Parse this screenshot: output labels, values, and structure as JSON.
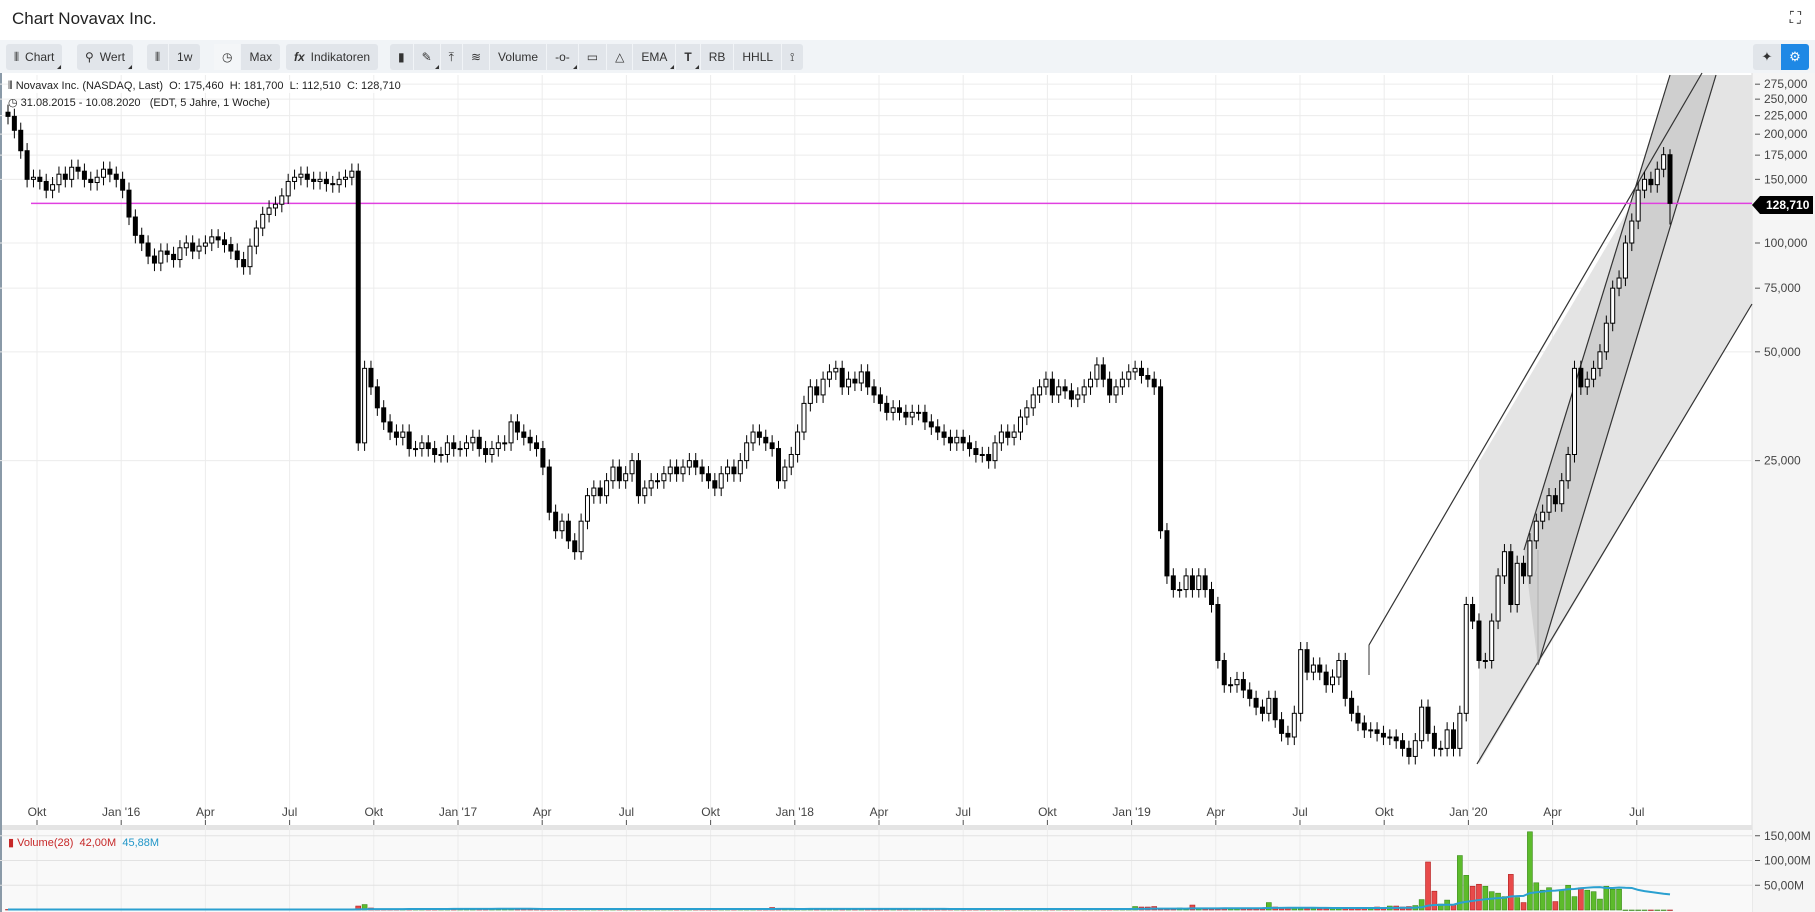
{
  "window": {
    "title": "Chart Novavax Inc.",
    "fullscreen_icon": "expand-icon"
  },
  "toolbar": {
    "chart": "Chart",
    "wert": "Wert",
    "interval": "1w",
    "range": "Max",
    "indicators": "Indikatoren",
    "volume": "Volume",
    "ema": "EMA",
    "rb": "RB",
    "hhll": "HHLL",
    "icons": [
      "candlestick-icon",
      "search-icon",
      "candlestick-icon",
      "clock-icon",
      "fx-icon",
      "bookmark-icon",
      "brush-icon",
      "upload-line-icon",
      "fibonacci-icon",
      "line-point-icon",
      "rectangle-icon",
      "triangle-icon",
      "text-icon",
      "path-icon",
      "sparkle-icon",
      "settings-icon"
    ]
  },
  "legend": {
    "instrument": "Novavax Inc. (NASDAQ, Last)",
    "o": "O: 175,460",
    "h": "H: 181,700",
    "l": "L: 112,510",
    "c": "C: 128,710",
    "range": "31.08.2015 - 10.08.2020",
    "info": "(EDT, 5 Jahre, 1 Woche)"
  },
  "volume_legend": {
    "label": "Volume(28)",
    "value": "42,00M",
    "ma_value": "45,88M"
  },
  "colors": {
    "hline": "#e040e0",
    "up_volume": "#5dbb2c",
    "down_volume": "#e84a4a",
    "volume_ma": "#2aa0d0",
    "accent": "#1e88e5"
  },
  "chart_data": {
    "type": "candlestick",
    "scale": "log",
    "interval": "1 Woche",
    "last_price": "128,710",
    "horizontal_line": 128.71,
    "y_ticks": [
      {
        "v": 275,
        "l": "275,000"
      },
      {
        "v": 250,
        "l": "250,000"
      },
      {
        "v": 225,
        "l": "225,000"
      },
      {
        "v": 200,
        "l": "200,000"
      },
      {
        "v": 175,
        "l": "175,000"
      },
      {
        "v": 150,
        "l": "150,000"
      },
      {
        "v": 100,
        "l": "100,000"
      },
      {
        "v": 75,
        "l": "75,000"
      },
      {
        "v": 50,
        "l": "50,000"
      },
      {
        "v": 25,
        "l": "25,000"
      }
    ],
    "x_ticks": [
      "Okt",
      "Jan '16",
      "Apr",
      "Jul",
      "Okt",
      "Jan '17",
      "Apr",
      "Jul",
      "Okt",
      "Jan '18",
      "Apr",
      "Jul",
      "Okt",
      "Jan '19",
      "Apr",
      "Jul",
      "Okt",
      "Jan '20",
      "Apr",
      "Jul"
    ],
    "volume_ticks": [
      {
        "v": 150,
        "l": "150,00M"
      },
      {
        "v": 100,
        "l": "100,00M"
      },
      {
        "v": 50,
        "l": "50,00M"
      }
    ],
    "first_open": 230,
    "closes": [
      224,
      205,
      180,
      150,
      152,
      148,
      140,
      145,
      155,
      150,
      162,
      158,
      150,
      147,
      152,
      160,
      155,
      150,
      140,
      118,
      105,
      100,
      92,
      88,
      95,
      93,
      90,
      97,
      100,
      95,
      98,
      100,
      104,
      102,
      99,
      95,
      90,
      86,
      98,
      110,
      120,
      125,
      128,
      135,
      148,
      152,
      155,
      150,
      148,
      150,
      146,
      145,
      150,
      152,
      158,
      28,
      45,
      40,
      35,
      32,
      30,
      29,
      30,
      27,
      27,
      28,
      27,
      26,
      26,
      28,
      27,
      27,
      28,
      29,
      27,
      26,
      27,
      28,
      28,
      32,
      30,
      29,
      28,
      27,
      24,
      18,
      16,
      17,
      15,
      14,
      17,
      20,
      21,
      20,
      22,
      24,
      22,
      23,
      25,
      20,
      21,
      22,
      22,
      23,
      24,
      23,
      24,
      25,
      24,
      23,
      22,
      21,
      23,
      24,
      23,
      25,
      28,
      30,
      29,
      28,
      27,
      22,
      24,
      26,
      30,
      36,
      40,
      38,
      42,
      44,
      45,
      40,
      42,
      41,
      44,
      40,
      38,
      36,
      34,
      35,
      34,
      33,
      34,
      34,
      32,
      31,
      30,
      29,
      28,
      29,
      28,
      27,
      26,
      26,
      25,
      28,
      30,
      29,
      30,
      33,
      35,
      38,
      40,
      42,
      38,
      40,
      39,
      37,
      38,
      40,
      42,
      46,
      42,
      38,
      40,
      42,
      44,
      45,
      43,
      42,
      40,
      16,
      12,
      11,
      11,
      12,
      11,
      12,
      11,
      10,
      7,
      6,
      6,
      6.2,
      5.8,
      5.5,
      5.2,
      5,
      5.5,
      4.8,
      4.4,
      4.3,
      5,
      7.5,
      6.5,
      6.8,
      6.5,
      6,
      6.3,
      7,
      5.5,
      5,
      4.7,
      4.5,
      4.5,
      4.4,
      4.3,
      4.3,
      4.2,
      4,
      3.8,
      4.2,
      5.2,
      4.4,
      4,
      4,
      4.5,
      4,
      5,
      10,
      9,
      7,
      7,
      9,
      12,
      14,
      10,
      13,
      12,
      15,
      17,
      18,
      20,
      19,
      22,
      26,
      45,
      40,
      42,
      45,
      50,
      60,
      75,
      80,
      100,
      115,
      140,
      150,
      145,
      160,
      175.46,
      128.71
    ],
    "volumes": [
      1,
      1,
      1,
      1,
      1,
      1,
      1,
      1,
      1,
      1,
      1,
      1,
      1,
      1,
      1,
      1,
      1,
      1,
      1,
      1,
      1,
      1,
      1,
      1,
      1,
      1,
      1,
      1,
      1,
      1,
      1,
      1,
      1,
      1,
      1,
      1,
      1,
      1,
      1,
      1,
      1,
      1,
      1,
      1,
      1,
      1,
      1,
      1,
      1,
      1,
      1,
      1,
      1,
      1,
      1,
      8,
      11,
      4,
      2,
      2,
      2,
      2,
      2,
      2,
      2,
      2,
      2,
      2,
      2,
      2,
      2,
      2,
      2,
      2,
      2,
      2,
      2,
      2,
      2,
      2,
      2,
      2,
      2,
      2,
      2,
      2,
      2,
      2,
      2,
      2,
      2,
      2,
      2,
      2,
      2,
      2,
      3,
      2,
      2,
      2,
      2,
      2,
      2,
      2,
      2,
      2,
      2,
      2,
      2,
      2,
      2,
      2,
      2,
      2,
      2,
      2,
      2,
      2,
      2,
      2,
      5,
      3,
      2,
      2,
      2,
      2,
      3,
      2,
      2,
      2,
      2,
      2,
      2,
      2,
      2,
      2,
      2,
      2,
      2,
      2,
      2,
      2,
      2,
      2,
      2,
      2,
      2,
      2,
      2,
      2,
      2,
      2,
      2,
      2,
      2,
      2,
      2,
      2,
      2,
      2,
      2,
      2,
      2,
      2,
      2,
      2,
      2,
      2,
      2,
      2,
      2,
      2,
      2,
      2,
      3,
      2,
      2,
      7,
      6,
      6,
      7,
      3,
      3,
      3,
      4,
      3,
      10,
      4,
      3,
      3,
      3,
      4,
      3,
      3,
      3,
      3,
      3,
      4,
      15,
      6,
      5,
      5,
      4,
      3,
      3,
      3,
      3,
      3,
      3,
      3,
      3,
      3,
      3,
      4,
      5,
      6,
      4,
      8,
      8,
      6,
      7,
      9,
      21,
      97,
      38,
      12,
      20,
      10,
      110,
      70,
      48,
      52,
      48,
      37,
      34,
      27,
      72,
      25,
      15,
      158,
      55,
      40,
      45,
      17,
      40,
      50,
      27,
      45,
      40,
      37,
      22,
      48,
      42,
      42
    ]
  }
}
